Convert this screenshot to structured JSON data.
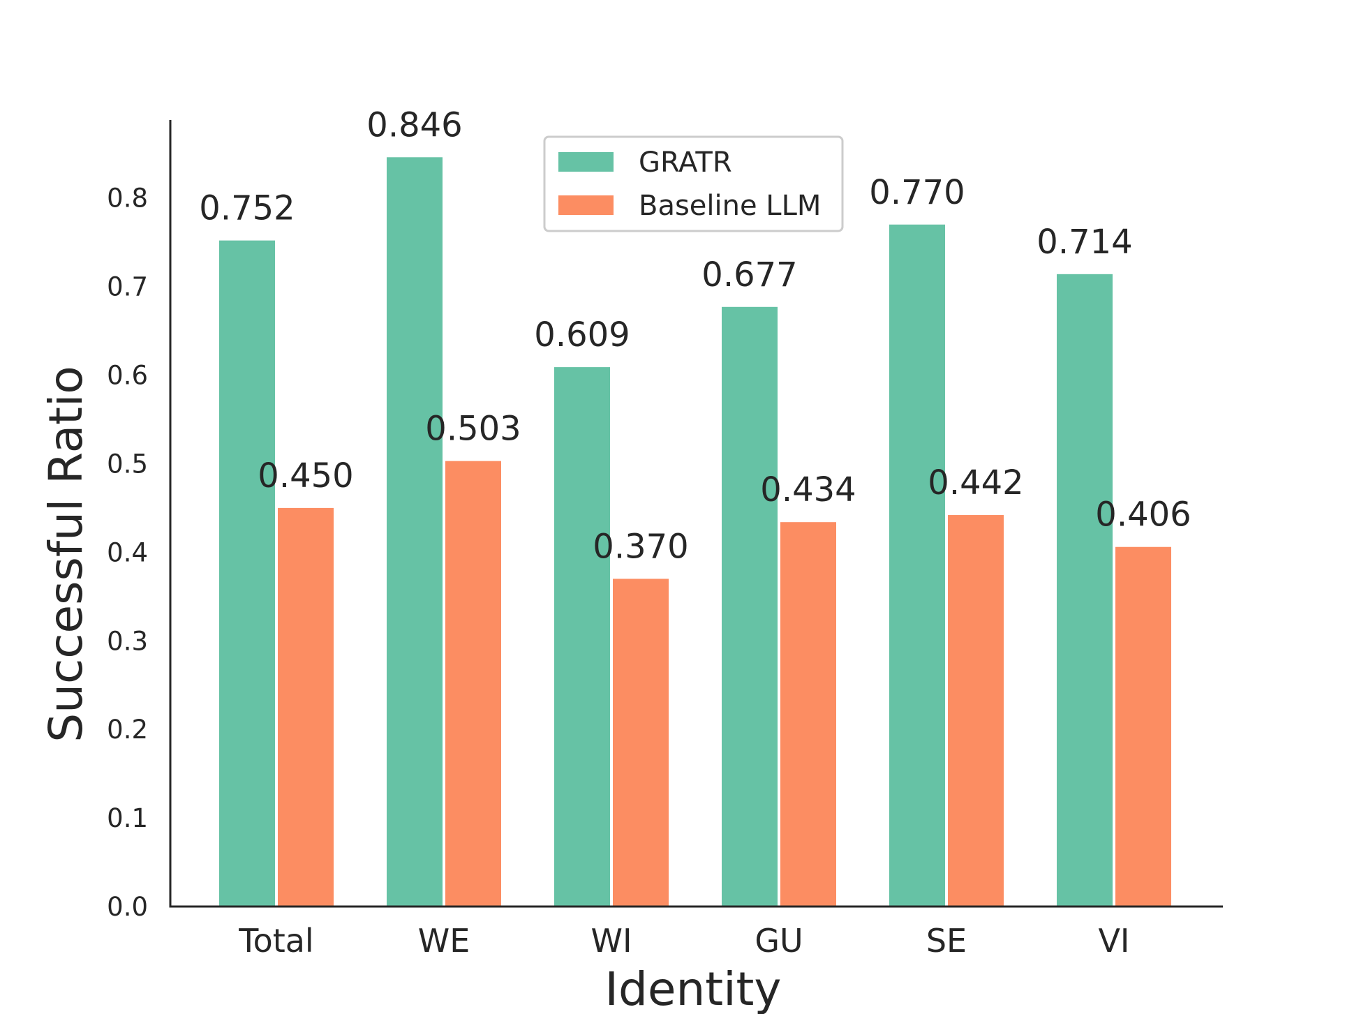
{
  "chart_data": {
    "type": "bar",
    "title": "",
    "xlabel": "Identity",
    "ylabel": "Successful Ratio",
    "categories": [
      "Total",
      "WE",
      "WI",
      "GU",
      "SE",
      "VI"
    ],
    "series": [
      {
        "name": "GRATR",
        "color": "#66c2a5",
        "values": [
          0.752,
          0.846,
          0.609,
          0.677,
          0.77,
          0.714
        ],
        "labels": [
          "0.752",
          "0.846",
          "0.609",
          "0.677",
          "0.770",
          "0.714"
        ]
      },
      {
        "name": "Baseline LLM",
        "color": "#fc8d62",
        "values": [
          0.45,
          0.503,
          0.37,
          0.434,
          0.442,
          0.406
        ],
        "labels": [
          "0.450",
          "0.503",
          "0.370",
          "0.434",
          "0.442",
          "0.406"
        ]
      }
    ],
    "ylim": [
      0,
      0.888
    ],
    "yticks": [
      "0.0",
      "0.1",
      "0.2",
      "0.3",
      "0.4",
      "0.5",
      "0.6",
      "0.7",
      "0.8"
    ],
    "ytick_values": [
      0.0,
      0.1,
      0.2,
      0.3,
      0.4,
      0.5,
      0.6,
      0.7,
      0.8
    ],
    "grid": false,
    "legend_position": "top-center"
  }
}
